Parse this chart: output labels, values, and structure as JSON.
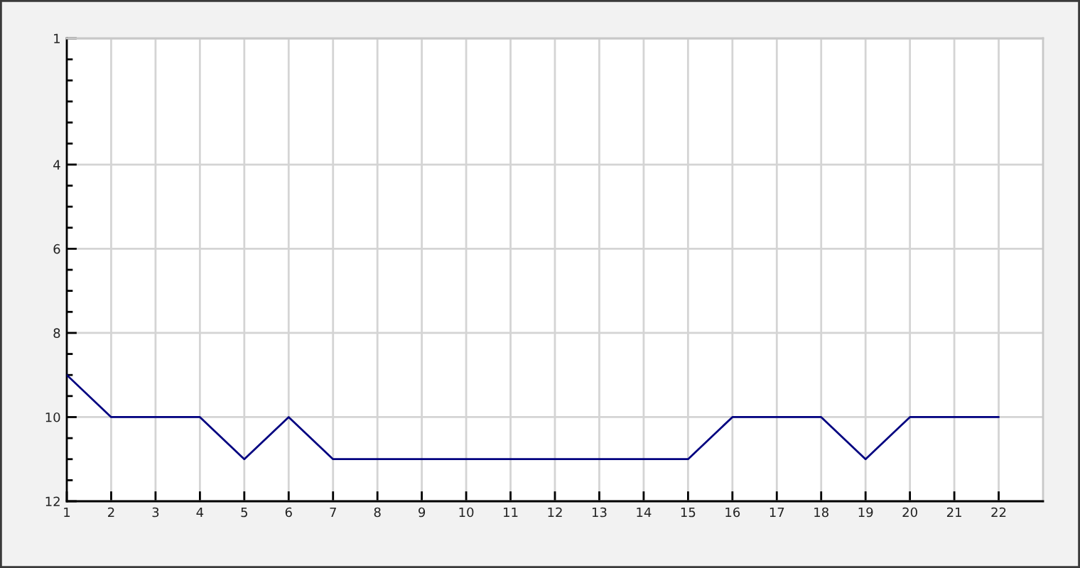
{
  "chart_data": {
    "type": "line",
    "x": [
      1,
      2,
      3,
      4,
      5,
      6,
      7,
      8,
      9,
      10,
      11,
      12,
      13,
      14,
      15,
      16,
      17,
      18,
      19,
      20,
      21,
      22
    ],
    "series": [
      {
        "color": "#000080",
        "values": [
          9,
          10,
          10,
          10,
          11,
          10,
          11,
          11,
          11,
          11,
          11,
          11,
          11,
          11,
          11,
          10,
          10,
          10,
          11,
          10,
          10,
          10
        ]
      }
    ],
    "xlim": [
      1,
      23
    ],
    "xticks": [
      1,
      2,
      3,
      4,
      5,
      6,
      7,
      8,
      9,
      10,
      11,
      12,
      13,
      14,
      15,
      16,
      17,
      18,
      19,
      20,
      21,
      22
    ],
    "ylim": [
      12,
      1
    ],
    "yticks": [
      1,
      {
        "value": 1.5,
        "label": null
      },
      {
        "value": 2,
        "label": null
      },
      {
        "value": 2.5,
        "label": null
      },
      {
        "value": 3,
        "label": null
      },
      {
        "value": 3.5,
        "label": null
      },
      4,
      {
        "value": 4.5,
        "label": null
      },
      {
        "value": 5,
        "label": null
      },
      {
        "value": 5.5,
        "label": null
      },
      6,
      {
        "value": 6.5,
        "label": null
      },
      {
        "value": 7,
        "label": null
      },
      {
        "value": 7.5,
        "label": null
      },
      8,
      {
        "value": 8.5,
        "label": null
      },
      {
        "value": 9,
        "label": null
      },
      {
        "value": 9.5,
        "label": null
      },
      10,
      {
        "value": 10.5,
        "label": null
      },
      {
        "value": 11,
        "label": null
      },
      {
        "value": 11.5,
        "label": null
      },
      12
    ],
    "grid": true
  }
}
